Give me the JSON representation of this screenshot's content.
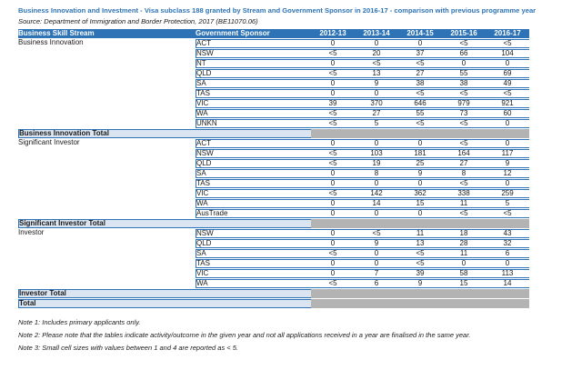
{
  "title": "Business Innovation and Investment - Visa subclass 188 granted by Stream and Government Sponsor in 2016-17 - comparison with previous programme year",
  "source": "Source: Department of Immigration and Border Protection, 2017 (BE11070.06)",
  "colors": {
    "header_blue": "#2e73b5",
    "border_blue": "#2e73b5",
    "total_row_bg": "#dbe5f1",
    "total_row_text": "#2e73b5",
    "blank_cell_gray": "#b3b3b3",
    "title_blue": "#2e73b5"
  },
  "table": {
    "columns": [
      "Business Skill Stream",
      "Government Sponsor",
      "2012-13",
      "2013-14",
      "2014-15",
      "2015-16",
      "2016-17"
    ],
    "groups": [
      {
        "stream": "Business Innovation",
        "total_label": "Business Innovation Total",
        "rows": [
          {
            "sponsor": "ACT",
            "values": [
              "0",
              "0",
              "0",
              "<5",
              "<5"
            ]
          },
          {
            "sponsor": "NSW",
            "values": [
              "<5",
              "20",
              "37",
              "66",
              "104"
            ]
          },
          {
            "sponsor": "NT",
            "values": [
              "0",
              "<5",
              "<5",
              "0",
              "0"
            ]
          },
          {
            "sponsor": "QLD",
            "values": [
              "<5",
              "13",
              "27",
              "55",
              "69"
            ]
          },
          {
            "sponsor": "SA",
            "values": [
              "0",
              "9",
              "38",
              "38",
              "49"
            ]
          },
          {
            "sponsor": "TAS",
            "values": [
              "0",
              "0",
              "<5",
              "<5",
              "<5"
            ]
          },
          {
            "sponsor": "VIC",
            "values": [
              "39",
              "370",
              "646",
              "979",
              "921"
            ]
          },
          {
            "sponsor": "WA",
            "values": [
              "<5",
              "27",
              "55",
              "73",
              "60"
            ]
          },
          {
            "sponsor": "UNKN",
            "values": [
              "<5",
              "5",
              "<5",
              "<5",
              "0"
            ]
          }
        ]
      },
      {
        "stream": "Significant Investor",
        "total_label": "Significant Investor Total",
        "rows": [
          {
            "sponsor": "ACT",
            "values": [
              "0",
              "0",
              "0",
              "<5",
              "0"
            ]
          },
          {
            "sponsor": "NSW",
            "values": [
              "<5",
              "103",
              "181",
              "164",
              "117"
            ]
          },
          {
            "sponsor": "QLD",
            "values": [
              "<5",
              "19",
              "25",
              "27",
              "9"
            ]
          },
          {
            "sponsor": "SA",
            "values": [
              "0",
              "8",
              "9",
              "8",
              "12"
            ]
          },
          {
            "sponsor": "TAS",
            "values": [
              "0",
              "0",
              "0",
              "<5",
              "0"
            ]
          },
          {
            "sponsor": "VIC",
            "values": [
              "<5",
              "142",
              "362",
              "338",
              "259"
            ]
          },
          {
            "sponsor": "WA",
            "values": [
              "0",
              "14",
              "15",
              "11",
              "5"
            ]
          },
          {
            "sponsor": "AusTrade",
            "values": [
              "0",
              "0",
              "0",
              "<5",
              "<5"
            ]
          }
        ]
      },
      {
        "stream": "Investor",
        "total_label": "Investor Total",
        "rows": [
          {
            "sponsor": "NSW",
            "values": [
              "0",
              "<5",
              "11",
              "18",
              "43"
            ]
          },
          {
            "sponsor": "QLD",
            "values": [
              "0",
              "9",
              "13",
              "28",
              "32"
            ]
          },
          {
            "sponsor": "SA",
            "values": [
              "<5",
              "0",
              "<5",
              "11",
              "6"
            ]
          },
          {
            "sponsor": "TAS",
            "values": [
              "0",
              "0",
              "<5",
              "0",
              "0"
            ]
          },
          {
            "sponsor": "VIC",
            "values": [
              "0",
              "7",
              "39",
              "58",
              "113"
            ]
          },
          {
            "sponsor": "WA",
            "values": [
              "<5",
              "6",
              "9",
              "15",
              "14"
            ]
          }
        ]
      }
    ],
    "grand_total_label": "Total"
  },
  "notes": [
    "Note 1: Includes primary applicants only.",
    "Note 2: Please note that the tables indicate activity/outcome in the given year and not all applications received in a year are finalised in the same year.",
    "Note 3: Small cell sizes with values between 1 and 4 are reported as < 5."
  ]
}
